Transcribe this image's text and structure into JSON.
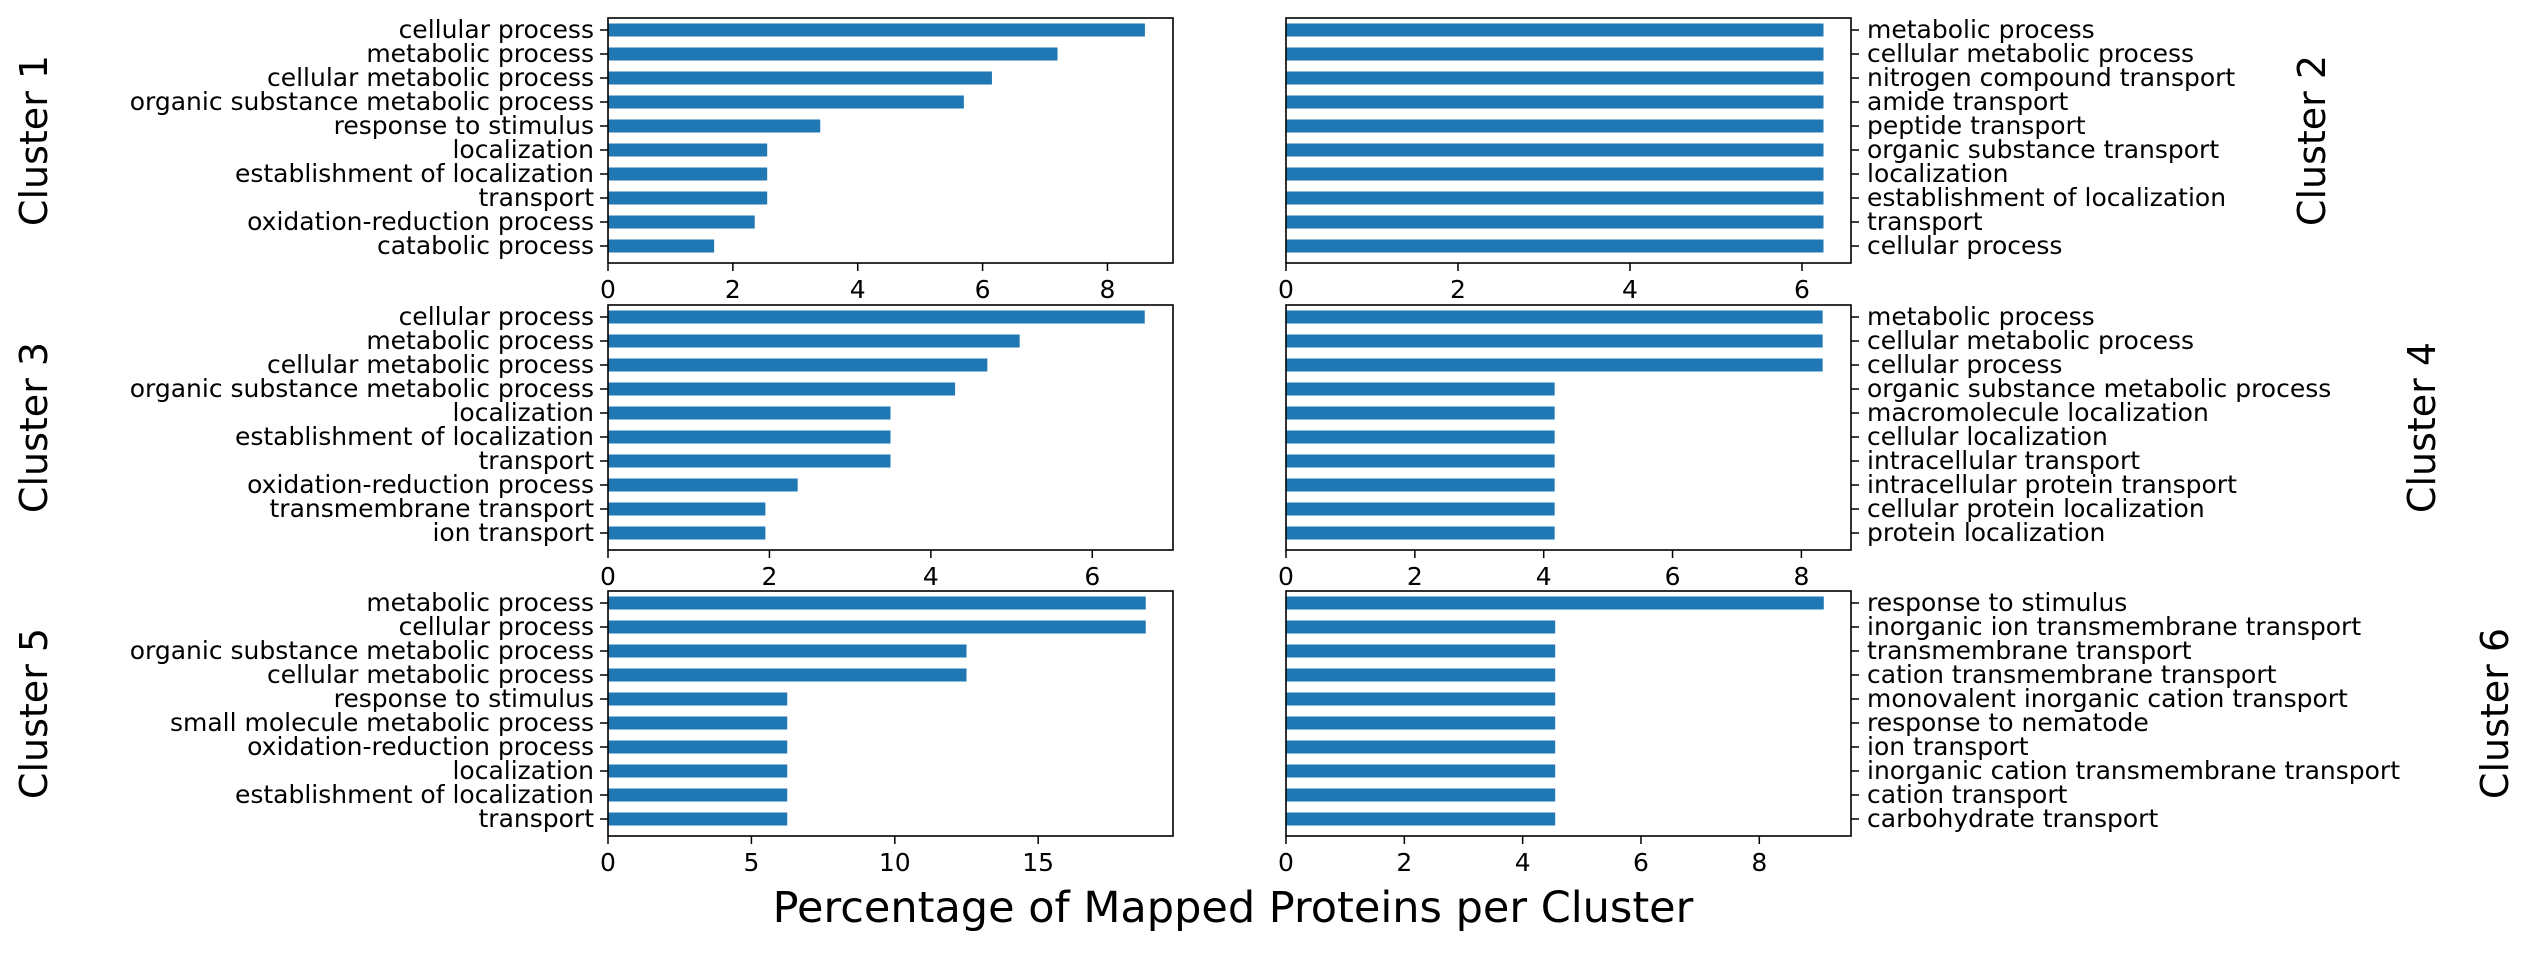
{
  "figure": {
    "xlabel": "Percentage of Mapped Proteins per Cluster",
    "bar_color": "#1f77b4"
  },
  "chart_data": [
    {
      "type": "bar",
      "orientation": "horizontal",
      "cluster_label": "Cluster 1",
      "categories": [
        "cellular process",
        "metabolic process",
        "cellular metabolic process",
        "organic substance metabolic process",
        "response to stimulus",
        "localization",
        "establishment of localization",
        "transport",
        "oxidation-reduction process",
        "catabolic process"
      ],
      "values": [
        8.6,
        7.2,
        6.15,
        5.7,
        3.4,
        2.55,
        2.55,
        2.55,
        2.35,
        1.7
      ],
      "xlim": [
        0,
        9.05
      ],
      "xticks": [
        0,
        2,
        4,
        6,
        8
      ]
    },
    {
      "type": "bar",
      "orientation": "horizontal",
      "cluster_label": "Cluster 2",
      "categories": [
        "metabolic process",
        "cellular metabolic process",
        "nitrogen compound transport",
        "amide transport",
        "peptide transport",
        "organic substance transport",
        "localization",
        "establishment of localization",
        "transport",
        "cellular process"
      ],
      "values": [
        6.25,
        6.25,
        6.25,
        6.25,
        6.25,
        6.25,
        6.25,
        6.25,
        6.25,
        6.25
      ],
      "xlim": [
        0,
        6.57
      ],
      "xticks": [
        0,
        2,
        4,
        6
      ]
    },
    {
      "type": "bar",
      "orientation": "horizontal",
      "cluster_label": "Cluster 3",
      "categories": [
        "cellular process",
        "metabolic process",
        "cellular metabolic process",
        "organic substance metabolic process",
        "localization",
        "establishment of localization",
        "transport",
        "oxidation-reduction process",
        "transmembrane transport",
        "ion transport"
      ],
      "values": [
        6.65,
        5.1,
        4.7,
        4.3,
        3.5,
        3.5,
        3.5,
        2.35,
        1.95,
        1.95
      ],
      "xlim": [
        0,
        7.0
      ],
      "xticks": [
        0,
        2,
        4,
        6
      ]
    },
    {
      "type": "bar",
      "orientation": "horizontal",
      "cluster_label": "Cluster 4",
      "categories": [
        "metabolic process",
        "cellular metabolic process",
        "cellular process",
        "organic substance metabolic process",
        "macromolecule localization",
        "cellular localization",
        "intracellular transport",
        "intracellular protein transport",
        "cellular protein localization",
        "protein localization"
      ],
      "values": [
        8.33,
        8.33,
        8.33,
        4.17,
        4.17,
        4.17,
        4.17,
        4.17,
        4.17,
        4.17
      ],
      "xlim": [
        0,
        8.77
      ],
      "xticks": [
        0,
        2,
        4,
        6,
        8
      ]
    },
    {
      "type": "bar",
      "orientation": "horizontal",
      "cluster_label": "Cluster 5",
      "categories": [
        "metabolic process",
        "cellular process",
        "organic substance metabolic process",
        "cellular metabolic process",
        "response to stimulus",
        "small molecule metabolic process",
        "oxidation-reduction process",
        "localization",
        "establishment of localization",
        "transport"
      ],
      "values": [
        18.75,
        18.75,
        12.5,
        12.5,
        6.25,
        6.25,
        6.25,
        6.25,
        6.25,
        6.25
      ],
      "xlim": [
        0,
        19.7
      ],
      "xticks": [
        0,
        5,
        10,
        15
      ]
    },
    {
      "type": "bar",
      "orientation": "horizontal",
      "cluster_label": "Cluster 6",
      "categories": [
        "response to stimulus",
        "inorganic ion transmembrane transport",
        "transmembrane transport",
        "cation transmembrane transport",
        "monovalent inorganic cation transport",
        "response to nematode",
        "ion transport",
        "inorganic cation transmembrane transport",
        "cation transport",
        "carbohydrate transport"
      ],
      "values": [
        9.09,
        4.55,
        4.55,
        4.55,
        4.55,
        4.55,
        4.55,
        4.55,
        4.55,
        4.55
      ],
      "xlim": [
        0,
        9.55
      ],
      "xticks": [
        0,
        2,
        4,
        6,
        8
      ]
    }
  ]
}
